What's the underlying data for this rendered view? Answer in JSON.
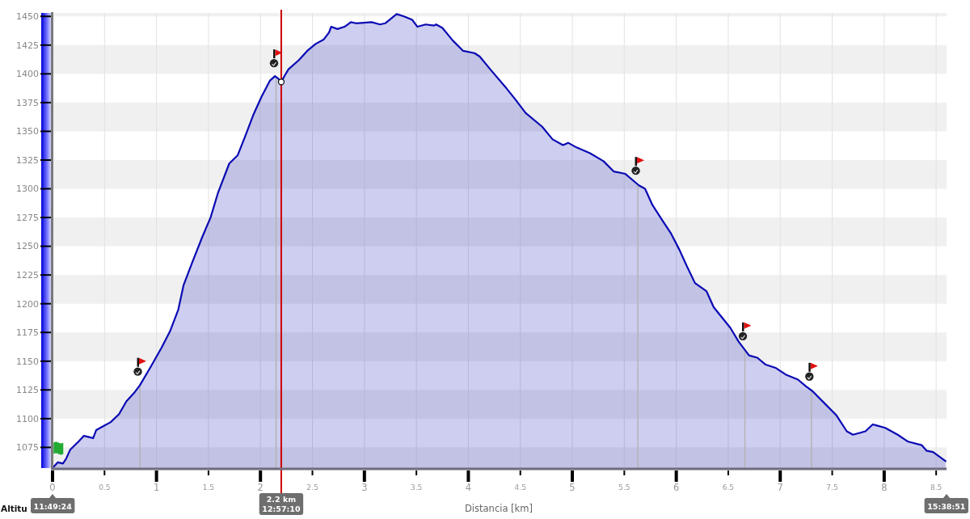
{
  "chart_data": {
    "type": "area",
    "xlabel": "Distancia [km]",
    "ylabel": "Altitu",
    "color": "#0a0ab4",
    "x": [
      0.01,
      0.05,
      0.1,
      0.13,
      0.17,
      0.25,
      0.3,
      0.35,
      0.39,
      0.42,
      0.48,
      0.56,
      0.64,
      0.71,
      0.79,
      0.84,
      0.95,
      1.05,
      1.13,
      1.21,
      1.26,
      1.34,
      1.44,
      1.52,
      1.59,
      1.7,
      1.78,
      1.85,
      1.93,
      2.01,
      2.09,
      2.14,
      2.17,
      2.2,
      2.23,
      2.27,
      2.37,
      2.45,
      2.53,
      2.61,
      2.66,
      2.68,
      2.74,
      2.81,
      2.87,
      2.92,
      3.07,
      3.15,
      3.2,
      3.31,
      3.38,
      3.46,
      3.51,
      3.59,
      3.67,
      3.69,
      3.75,
      3.85,
      3.95,
      4.06,
      4.11,
      4.21,
      4.37,
      4.45,
      4.55,
      4.71,
      4.81,
      4.91,
      4.96,
      5.04,
      5.17,
      5.3,
      5.4,
      5.51,
      5.64,
      5.7,
      5.77,
      5.87,
      5.95,
      6.03,
      6.1,
      6.18,
      6.29,
      6.31,
      6.36,
      6.44,
      6.52,
      6.6,
      6.65,
      6.7,
      6.78,
      6.86,
      6.96,
      7.06,
      7.17,
      7.25,
      7.31,
      7.43,
      7.54,
      7.64,
      7.7,
      7.82,
      7.89,
      7.93,
      8.01,
      8.13,
      8.23,
      8.36,
      8.41,
      8.47,
      8.59
    ],
    "values": [
      1058,
      1062,
      1061,
      1065,
      1073,
      1080,
      1085,
      1084,
      1083,
      1090,
      1093,
      1097,
      1104,
      1115,
      1123,
      1129,
      1146,
      1162,
      1176,
      1195,
      1216,
      1235,
      1258,
      1275,
      1296,
      1322,
      1329,
      1345,
      1364,
      1380,
      1394,
      1398,
      1396,
      1393,
      1398,
      1404,
      1412,
      1420,
      1426,
      1430,
      1436,
      1441,
      1439,
      1441,
      1445,
      1444,
      1445,
      1443,
      1444,
      1452,
      1450,
      1447,
      1441,
      1443,
      1442,
      1443,
      1440,
      1429,
      1420,
      1418,
      1415,
      1404,
      1387,
      1378,
      1366,
      1354,
      1343,
      1338,
      1340,
      1336,
      1331,
      1324,
      1315,
      1313,
      1303,
      1300,
      1286,
      1272,
      1261,
      1247,
      1233,
      1218,
      1211,
      1207,
      1197,
      1188,
      1179,
      1167,
      1161,
      1155,
      1153,
      1147,
      1144,
      1138,
      1134,
      1128,
      1124,
      1113,
      1103,
      1089,
      1086,
      1089,
      1095,
      1094,
      1092,
      1086,
      1080,
      1077,
      1072,
      1071,
      1063
    ],
    "xlim": [
      0,
      8.6
    ],
    "ylim": [
      1057,
      1453
    ],
    "xticks": [
      0,
      0.5,
      1,
      1.5,
      2,
      2.5,
      3,
      3.5,
      4,
      4.5,
      5,
      5.5,
      6,
      6.5,
      7,
      7.5,
      8,
      8.5
    ],
    "yticks": [
      1075,
      1100,
      1125,
      1150,
      1175,
      1200,
      1225,
      1250,
      1275,
      1300,
      1325,
      1350,
      1375,
      1400,
      1425,
      1450
    ],
    "grid": true,
    "ref_lines": [
      {
        "axis": "x",
        "value": 0.84,
        "color": "#b4b4b4"
      },
      {
        "axis": "x",
        "value": 2.15,
        "color": "#b4b4b4"
      },
      {
        "axis": "x",
        "value": 5.63,
        "color": "#b4b4b4"
      },
      {
        "axis": "x",
        "value": 6.66,
        "color": "#b4b4b4"
      },
      {
        "axis": "x",
        "value": 7.3,
        "color": "#b4b4b4"
      },
      {
        "axis": "x",
        "value": 2.2,
        "label": "2.2 km\n12:57:10",
        "color": "#cc0000"
      }
    ],
    "annotations": [
      "11:49:24",
      "15:38:51"
    ]
  }
}
